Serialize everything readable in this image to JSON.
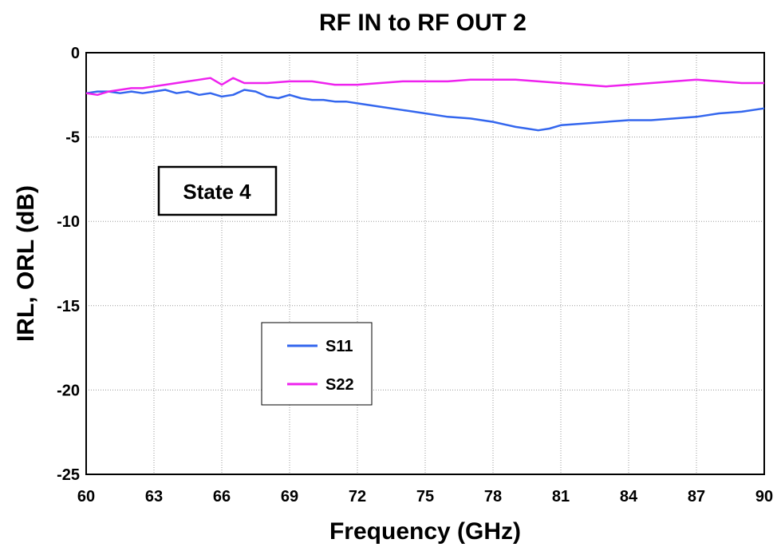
{
  "chart_data": {
    "type": "line",
    "title": "RF IN  to  RF OUT 2",
    "xlabel": "Frequency (GHz)",
    "ylabel": "IRL, ORL (dB)",
    "xlim": [
      60,
      90
    ],
    "ylim": [
      -25,
      0
    ],
    "xticks": [
      60,
      63,
      66,
      69,
      72,
      75,
      78,
      81,
      84,
      87,
      90
    ],
    "yticks": [
      0,
      -5,
      -10,
      -15,
      -20,
      -25
    ],
    "grid": true,
    "legend_position": "center",
    "annotation": "State 4",
    "series": [
      {
        "name": "S11",
        "color": "#3366ee",
        "x": [
          60,
          60.5,
          61,
          61.5,
          62,
          62.5,
          63,
          63.5,
          64,
          64.5,
          65,
          65.5,
          66,
          66.5,
          67,
          67.5,
          68,
          68.5,
          69,
          69.5,
          70,
          70.5,
          71,
          71.5,
          72,
          72.5,
          73,
          74,
          75,
          76,
          77,
          78,
          79,
          79.5,
          80,
          80.5,
          81,
          82,
          83,
          84,
          85,
          86,
          87,
          88,
          89,
          90
        ],
        "y": [
          -2.4,
          -2.3,
          -2.3,
          -2.4,
          -2.3,
          -2.4,
          -2.3,
          -2.2,
          -2.4,
          -2.3,
          -2.5,
          -2.4,
          -2.6,
          -2.5,
          -2.2,
          -2.3,
          -2.6,
          -2.7,
          -2.5,
          -2.7,
          -2.8,
          -2.8,
          -2.9,
          -2.9,
          -3.0,
          -3.1,
          -3.2,
          -3.4,
          -3.6,
          -3.8,
          -3.9,
          -4.1,
          -4.4,
          -4.5,
          -4.6,
          -4.5,
          -4.3,
          -4.2,
          -4.1,
          -4.0,
          -4.0,
          -3.9,
          -3.8,
          -3.6,
          -3.5,
          -3.3
        ]
      },
      {
        "name": "S22",
        "color": "#ee22ee",
        "x": [
          60,
          60.5,
          61,
          61.5,
          62,
          62.5,
          63,
          63.5,
          64,
          64.5,
          65,
          65.5,
          66,
          66.5,
          67,
          67.5,
          68,
          69,
          70,
          71,
          72,
          73,
          74,
          75,
          76,
          77,
          78,
          79,
          80,
          81,
          82,
          83,
          84,
          85,
          86,
          87,
          88,
          89,
          90
        ],
        "y": [
          -2.4,
          -2.5,
          -2.3,
          -2.2,
          -2.1,
          -2.1,
          -2.0,
          -1.9,
          -1.8,
          -1.7,
          -1.6,
          -1.5,
          -1.9,
          -1.5,
          -1.8,
          -1.8,
          -1.8,
          -1.7,
          -1.7,
          -1.9,
          -1.9,
          -1.8,
          -1.7,
          -1.7,
          -1.7,
          -1.6,
          -1.6,
          -1.6,
          -1.7,
          -1.8,
          -1.9,
          -2.0,
          -1.9,
          -1.8,
          -1.7,
          -1.6,
          -1.7,
          -1.8,
          -1.8
        ]
      }
    ]
  }
}
